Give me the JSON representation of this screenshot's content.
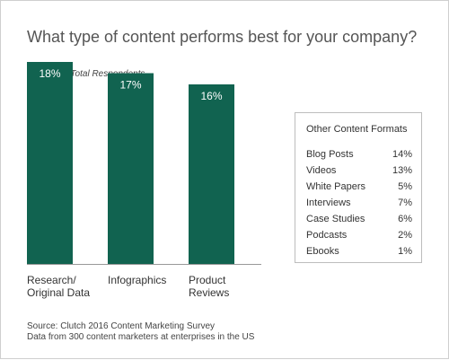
{
  "chart_data": {
    "type": "bar",
    "title": "What type of content performs best for your company?",
    "subtitle": "Percent of Total Respondents",
    "categories": [
      "Research/\nOriginal Data",
      "Infographics",
      "Product\nReviews"
    ],
    "values": [
      18,
      17,
      16
    ],
    "value_labels": [
      "18%",
      "17%",
      "16%"
    ],
    "ylim": [
      0,
      20
    ],
    "grid": false,
    "bar_color": "#116350",
    "other_formats": {
      "title": "Other Content Formats",
      "items": [
        {
          "label": "Blog Posts",
          "value": "14%"
        },
        {
          "label": "Videos",
          "value": "13%"
        },
        {
          "label": "White Papers",
          "value": "5%"
        },
        {
          "label": "Interviews",
          "value": "7%"
        },
        {
          "label": "Case Studies",
          "value": "6%"
        },
        {
          "label": "Podcasts",
          "value": "2%"
        },
        {
          "label": "Ebooks",
          "value": "1%"
        }
      ]
    }
  },
  "footer": {
    "source": "Source: Clutch 2016 Content Marketing Survey",
    "note": "Data from 300 content marketers at enterprises in the US"
  }
}
